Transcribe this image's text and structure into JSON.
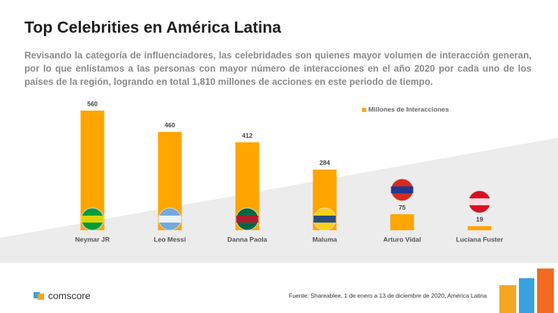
{
  "title": "Top Celebrities en América Latina",
  "subtitle": "Revisando la categoría de influenciadores, las celebridades son quienes mayor volumen de interacción generan, por lo que enlistamos a las personas con mayor número de interacciones en el año 2020 por cada uno de los países de la región, logrando en total 1,810 millones de acciones en este periodo de tiempo.",
  "chart_data": {
    "type": "bar",
    "categories": [
      "Neymar JR",
      "Leo Messi",
      "Danna Paola",
      "Maluma",
      "Arturo Vidal",
      "Luciana Fuster"
    ],
    "series": [
      {
        "name": "Millones de Interacciones",
        "color": "#ffa500",
        "values": [
          560,
          460,
          412,
          284,
          75,
          19
        ]
      }
    ],
    "legend": "top-right"
  },
  "source": "Fuente: Shareablee, 1 de enero a 13 de diciembre de 2020, América Latina",
  "logo": "comscore"
}
